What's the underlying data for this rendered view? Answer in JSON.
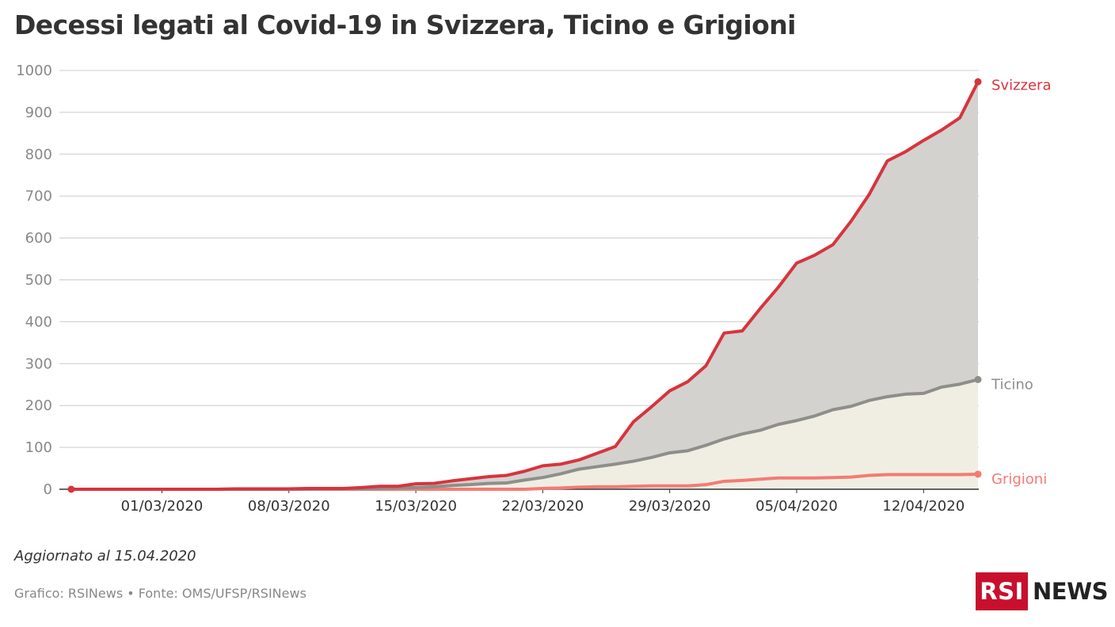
{
  "title": "Decessi legati al Covid-19 in Svizzera, Ticino e Grigioni",
  "updated": "Aggiornato al 15.04.2020",
  "source": "Grafico: RSINews • Fonte: OMS/UFSP/RSINews",
  "logo": {
    "rsi": "RSI",
    "news": "NEWS"
  },
  "colors": {
    "svizzera": "#d7343d",
    "ticino": "#8e8e8a",
    "grigioni": "#f47b74",
    "area_upper": "#d3d2cf",
    "area_lower": "#f0eee3",
    "grid": "#cccccc",
    "axis": "#333333"
  },
  "chart_data": {
    "type": "area",
    "title": "Decessi legati al Covid-19 in Svizzera, Ticino e Grigioni",
    "xlabel": "",
    "ylabel": "",
    "ylim": [
      0,
      1000
    ],
    "yticks": [
      0,
      100,
      200,
      300,
      400,
      500,
      600,
      700,
      800,
      900,
      1000
    ],
    "xtick_labels": [
      "01/03/2020",
      "08/03/2020",
      "15/03/2020",
      "22/03/2020",
      "29/03/2020",
      "05/04/2020",
      "12/04/2020"
    ],
    "grid": true,
    "legend": "direct labels at line ends (right)",
    "x": [
      "2020-02-25",
      "2020-02-26",
      "2020-02-27",
      "2020-02-28",
      "2020-02-29",
      "2020-03-01",
      "2020-03-02",
      "2020-03-03",
      "2020-03-04",
      "2020-03-05",
      "2020-03-06",
      "2020-03-07",
      "2020-03-08",
      "2020-03-09",
      "2020-03-10",
      "2020-03-11",
      "2020-03-12",
      "2020-03-13",
      "2020-03-14",
      "2020-03-15",
      "2020-03-16",
      "2020-03-17",
      "2020-03-18",
      "2020-03-19",
      "2020-03-20",
      "2020-03-21",
      "2020-03-22",
      "2020-03-23",
      "2020-03-24",
      "2020-03-25",
      "2020-03-26",
      "2020-03-27",
      "2020-03-28",
      "2020-03-29",
      "2020-03-30",
      "2020-03-31",
      "2020-04-01",
      "2020-04-02",
      "2020-04-03",
      "2020-04-04",
      "2020-04-05",
      "2020-04-06",
      "2020-04-07",
      "2020-04-08",
      "2020-04-09",
      "2020-04-10",
      "2020-04-11",
      "2020-04-12",
      "2020-04-13",
      "2020-04-14",
      "2020-04-15"
    ],
    "series": [
      {
        "name": "Svizzera",
        "values": [
          0,
          0,
          0,
          0,
          0,
          0,
          0,
          0,
          0,
          1,
          1,
          1,
          1,
          2,
          2,
          2,
          4,
          7,
          7,
          13,
          14,
          20,
          25,
          30,
          33,
          43,
          56,
          60,
          70,
          86,
          102,
          161,
          197,
          235,
          257,
          295,
          373,
          378,
          432,
          483,
          540,
          559,
          584,
          640,
          704,
          784,
          806,
          833,
          858,
          887,
          973
        ]
      },
      {
        "name": "Ticino",
        "values": [
          0,
          0,
          0,
          0,
          0,
          0,
          0,
          0,
          0,
          0,
          0,
          0,
          0,
          0,
          1,
          1,
          1,
          2,
          3,
          4,
          6,
          9,
          11,
          14,
          15,
          22,
          28,
          37,
          48,
          54,
          60,
          67,
          76,
          87,
          92,
          105,
          120,
          132,
          141,
          155,
          164,
          175,
          190,
          198,
          212,
          221,
          227,
          229,
          244,
          251,
          262
        ]
      },
      {
        "name": "Grigioni",
        "values": [
          0,
          0,
          0,
          0,
          0,
          0,
          0,
          0,
          0,
          0,
          0,
          0,
          0,
          0,
          0,
          0,
          0,
          0,
          0,
          0,
          0,
          0,
          0,
          0,
          0,
          0,
          2,
          3,
          5,
          6,
          6,
          7,
          8,
          8,
          8,
          11,
          19,
          21,
          24,
          27,
          27,
          27,
          28,
          29,
          33,
          35,
          35,
          35,
          35,
          35,
          36
        ]
      }
    ]
  }
}
